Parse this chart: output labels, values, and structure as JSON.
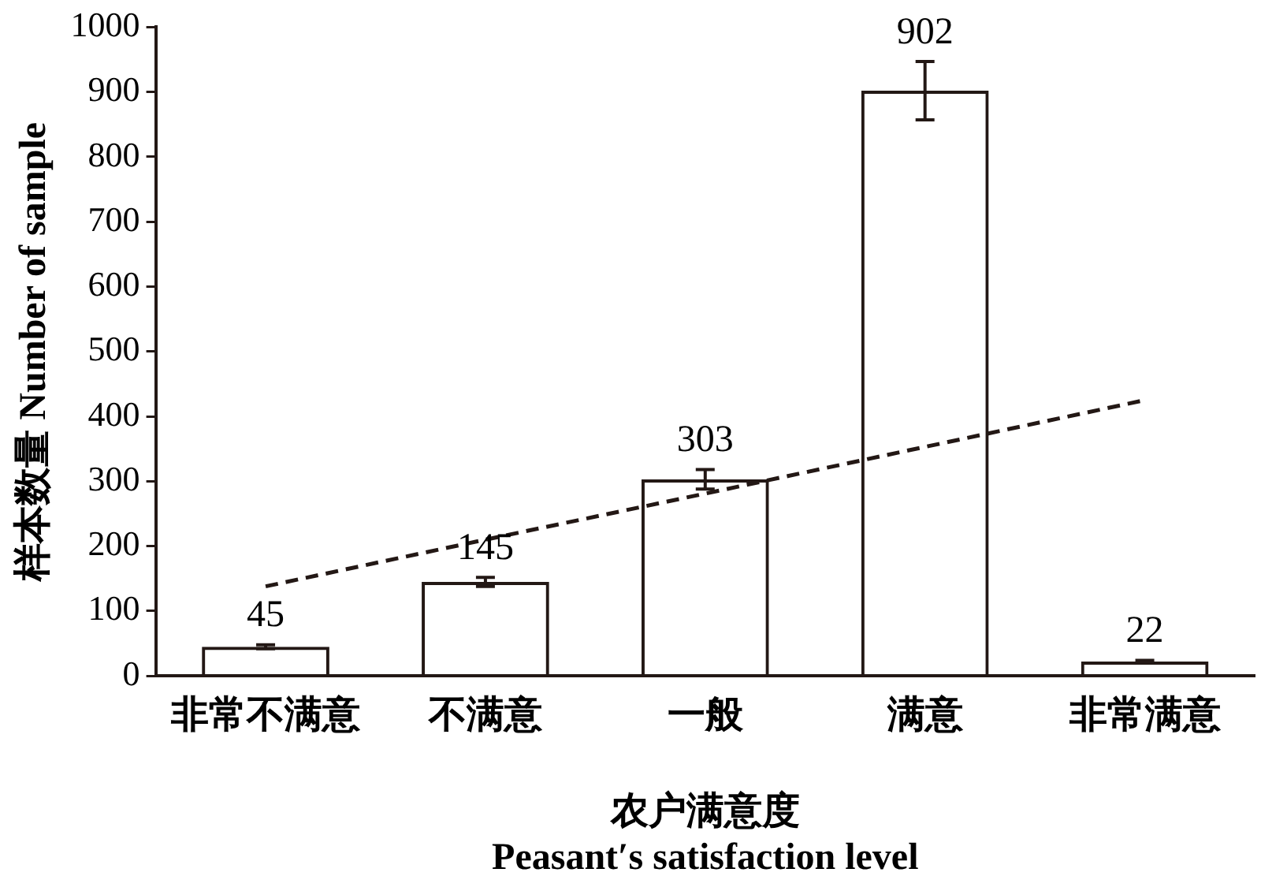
{
  "chart_data": {
    "type": "bar",
    "xlabel": "农户满意度\nPeasant′s satisfaction level",
    "ylabel": "样本数量 Number of sample",
    "categories": [
      "非常不满意",
      "不满意",
      "一般",
      "满意",
      "非常满意"
    ],
    "series": [
      {
        "color": "#231815",
        "values": [
          45,
          145,
          303,
          902,
          22
        ],
        "errors": [
          3,
          7,
          15,
          45,
          2
        ],
        "value_labels": [
          "45",
          "145",
          "303",
          "902",
          "22"
        ]
      },
      {
        "type": "line",
        "values": [
          138,
          210,
          281,
          353,
          425
        ],
        "color": "#231815",
        "line_style": "dashed",
        "marker": "none"
      }
    ],
    "ylim": [
      0,
      1000
    ],
    "yticks": [
      0,
      100,
      200,
      300,
      400,
      500,
      600,
      700,
      800,
      900,
      1000
    ],
    "grid": false,
    "legend": false
  }
}
